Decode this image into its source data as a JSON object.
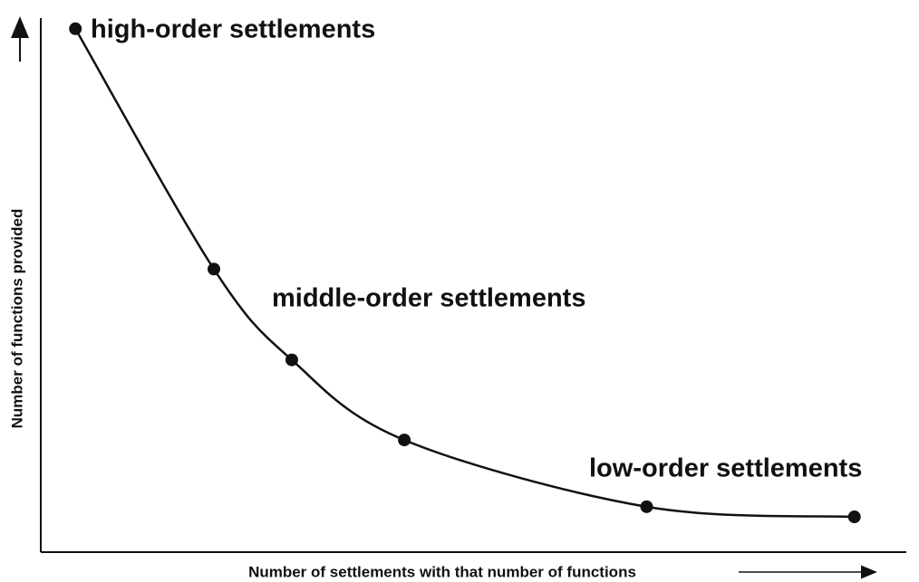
{
  "chart_data": {
    "type": "line",
    "x_label": "Number of settlements with that number of functions",
    "y_label": "Number of functions provided",
    "x": [
      4,
      20,
      29,
      42,
      70,
      94
    ],
    "values": [
      98,
      53,
      36,
      21,
      8.5,
      6.6
    ],
    "color": "#111111",
    "xlim": [
      0,
      100
    ],
    "ylim": [
      0,
      100
    ],
    "annotations": [
      "high-order settlements",
      "middle-order settlements",
      "low-order settlements"
    ]
  }
}
